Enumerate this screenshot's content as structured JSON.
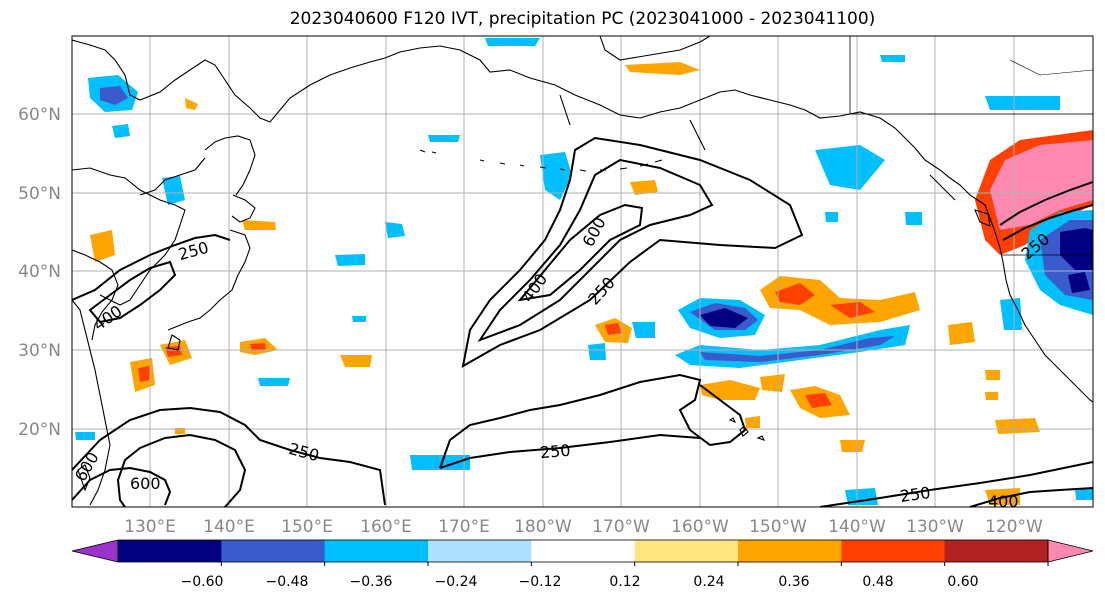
{
  "title": "2023040600 F120 IVT, precipitation PC (2023041000 - 2023041100)",
  "lat_labels": [
    "60°N",
    "50°N",
    "40°N",
    "30°N",
    "20°N"
  ],
  "lon_labels": [
    "130°E",
    "140°E",
    "150°E",
    "160°E",
    "170°E",
    "180°W",
    "170°W",
    "160°W",
    "150°W",
    "140°W",
    "130°W",
    "120°W"
  ],
  "ivt_contour_labels": [
    "250",
    "400",
    "600",
    "250",
    "400",
    "600",
    "250",
    "250",
    "600",
    "250",
    "250",
    "400",
    "250",
    "250"
  ],
  "colorbar": {
    "tick_labels": [
      "−0.60",
      "−0.48",
      "−0.36",
      "−0.24",
      "−0.12",
      "0.12",
      "0.24",
      "0.36",
      "0.48",
      "0.60"
    ],
    "colors": [
      "#9933cc",
      "#000080",
      "#3a5bcc",
      "#00bfff",
      "#b0e0ff",
      "#ffffff",
      "#ffe680",
      "#ffa500",
      "#ff4000",
      "#b22222",
      "#ff88b0"
    ]
  },
  "palette": {
    "land": "#000000",
    "grid": "#b0b0b0",
    "tick_text": "#888888",
    "contour": "#000000"
  }
}
